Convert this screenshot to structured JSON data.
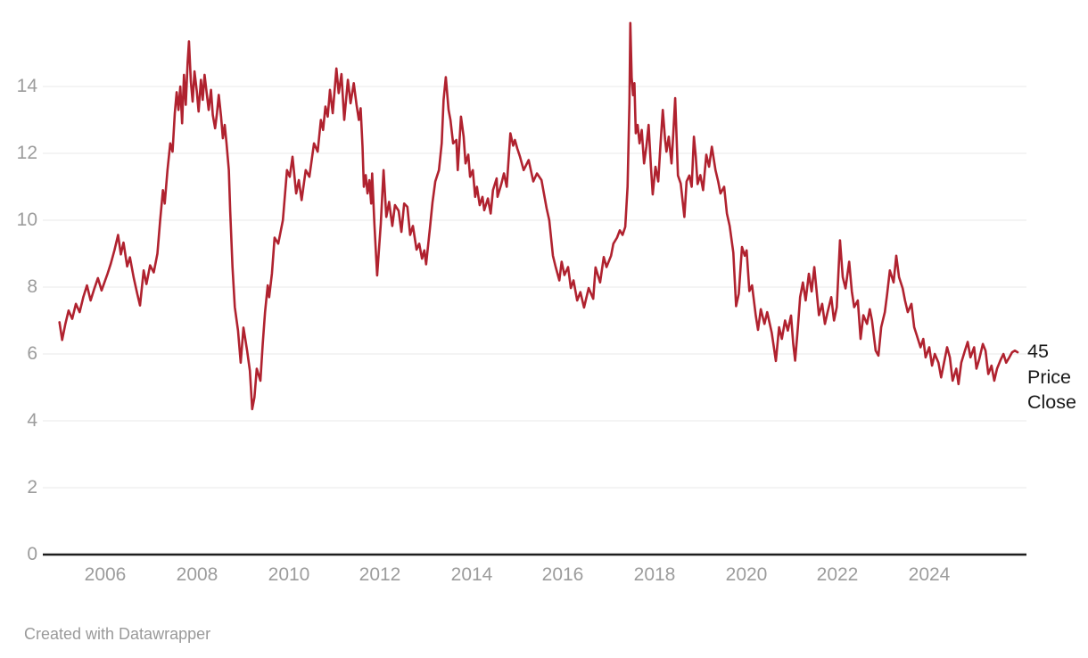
{
  "chart_data": {
    "type": "line",
    "title": "",
    "series_label": "45 Price Close",
    "end_label_lines": [
      "45",
      "Price",
      "Close"
    ],
    "xlabel": "",
    "ylabel": "",
    "legend_position": "end-of-line-label",
    "grid": "horizontal",
    "x_ticks": [
      "2006",
      "2008",
      "2010",
      "2012",
      "2014",
      "2016",
      "2018",
      "2020",
      "2022",
      "2024"
    ],
    "y_ticks": [
      "14",
      "12",
      "10",
      "8",
      "6",
      "4",
      "2",
      "0"
    ],
    "xlim": [
      2004.9,
      2026.1
    ],
    "ylim": [
      0,
      16.6
    ],
    "colors": {
      "line": "#b0222f",
      "grid": "#e8e8e8",
      "axis": "#1d1d1d",
      "tick_label": "#9c9c9c",
      "end_label": "#1a1a1a",
      "attribution": "#9a9a9a"
    },
    "points": [
      [
        2005.0,
        6.95
      ],
      [
        2005.06,
        6.42
      ],
      [
        2005.13,
        6.9
      ],
      [
        2005.2,
        7.3
      ],
      [
        2005.28,
        7.05
      ],
      [
        2005.36,
        7.5
      ],
      [
        2005.44,
        7.25
      ],
      [
        2005.52,
        7.7
      ],
      [
        2005.6,
        8.05
      ],
      [
        2005.68,
        7.6
      ],
      [
        2005.76,
        7.95
      ],
      [
        2005.84,
        8.27
      ],
      [
        2005.92,
        7.9
      ],
      [
        2005.98,
        8.13
      ],
      [
        2006.05,
        8.4
      ],
      [
        2006.12,
        8.7
      ],
      [
        2006.2,
        9.1
      ],
      [
        2006.28,
        9.56
      ],
      [
        2006.34,
        8.98
      ],
      [
        2006.4,
        9.33
      ],
      [
        2006.48,
        8.62
      ],
      [
        2006.54,
        8.89
      ],
      [
        2006.62,
        8.3
      ],
      [
        2006.7,
        7.8
      ],
      [
        2006.76,
        7.45
      ],
      [
        2006.84,
        8.5
      ],
      [
        2006.9,
        8.09
      ],
      [
        2006.98,
        8.65
      ],
      [
        2007.06,
        8.44
      ],
      [
        2007.14,
        9.0
      ],
      [
        2007.2,
        10.0
      ],
      [
        2007.26,
        10.9
      ],
      [
        2007.3,
        10.5
      ],
      [
        2007.36,
        11.5
      ],
      [
        2007.42,
        12.3
      ],
      [
        2007.47,
        12.05
      ],
      [
        2007.52,
        13.2
      ],
      [
        2007.56,
        13.83
      ],
      [
        2007.6,
        13.3
      ],
      [
        2007.64,
        14.0
      ],
      [
        2007.68,
        12.9
      ],
      [
        2007.72,
        14.35
      ],
      [
        2007.76,
        13.45
      ],
      [
        2007.8,
        14.72
      ],
      [
        2007.83,
        15.35
      ],
      [
        2007.87,
        14.15
      ],
      [
        2007.91,
        13.55
      ],
      [
        2007.95,
        14.45
      ],
      [
        2008.0,
        13.85
      ],
      [
        2008.04,
        13.25
      ],
      [
        2008.09,
        14.2
      ],
      [
        2008.13,
        13.6
      ],
      [
        2008.17,
        14.35
      ],
      [
        2008.22,
        13.75
      ],
      [
        2008.26,
        13.3
      ],
      [
        2008.31,
        13.9
      ],
      [
        2008.35,
        13.15
      ],
      [
        2008.4,
        12.75
      ],
      [
        2008.44,
        13.2
      ],
      [
        2008.48,
        13.75
      ],
      [
        2008.53,
        13.1
      ],
      [
        2008.57,
        12.45
      ],
      [
        2008.61,
        12.85
      ],
      [
        2008.65,
        12.3
      ],
      [
        2008.7,
        11.5
      ],
      [
        2008.73,
        10.3
      ],
      [
        2008.78,
        8.6
      ],
      [
        2008.83,
        7.4
      ],
      [
        2008.9,
        6.7
      ],
      [
        2008.96,
        5.74
      ],
      [
        2009.02,
        6.79
      ],
      [
        2009.1,
        6.1
      ],
      [
        2009.16,
        5.5
      ],
      [
        2009.21,
        4.35
      ],
      [
        2009.26,
        4.7
      ],
      [
        2009.31,
        5.56
      ],
      [
        2009.39,
        5.2
      ],
      [
        2009.44,
        6.3
      ],
      [
        2009.49,
        7.25
      ],
      [
        2009.55,
        8.05
      ],
      [
        2009.58,
        7.7
      ],
      [
        2009.64,
        8.4
      ],
      [
        2009.7,
        9.48
      ],
      [
        2009.78,
        9.3
      ],
      [
        2009.88,
        10.0
      ],
      [
        2009.97,
        11.5
      ],
      [
        2010.03,
        11.3
      ],
      [
        2010.09,
        11.9
      ],
      [
        2010.17,
        10.8
      ],
      [
        2010.23,
        11.2
      ],
      [
        2010.29,
        10.6
      ],
      [
        2010.38,
        11.5
      ],
      [
        2010.46,
        11.3
      ],
      [
        2010.56,
        12.3
      ],
      [
        2010.64,
        12.05
      ],
      [
        2010.71,
        13.0
      ],
      [
        2010.76,
        12.7
      ],
      [
        2010.81,
        13.4
      ],
      [
        2010.86,
        13.1
      ],
      [
        2010.91,
        13.9
      ],
      [
        2010.97,
        13.2
      ],
      [
        2011.05,
        14.54
      ],
      [
        2011.1,
        13.8
      ],
      [
        2011.16,
        14.37
      ],
      [
        2011.22,
        13.0
      ],
      [
        2011.3,
        14.2
      ],
      [
        2011.36,
        13.5
      ],
      [
        2011.43,
        14.1
      ],
      [
        2011.49,
        13.45
      ],
      [
        2011.54,
        13.0
      ],
      [
        2011.58,
        13.35
      ],
      [
        2011.62,
        12.2
      ],
      [
        2011.65,
        11.0
      ],
      [
        2011.69,
        11.35
      ],
      [
        2011.73,
        10.8
      ],
      [
        2011.77,
        11.2
      ],
      [
        2011.81,
        10.5
      ],
      [
        2011.83,
        11.4
      ],
      [
        2011.88,
        9.9
      ],
      [
        2011.94,
        8.35
      ],
      [
        2012.02,
        9.9
      ],
      [
        2012.08,
        11.5
      ],
      [
        2012.14,
        10.1
      ],
      [
        2012.2,
        10.55
      ],
      [
        2012.27,
        9.83
      ],
      [
        2012.33,
        10.45
      ],
      [
        2012.41,
        10.28
      ],
      [
        2012.47,
        9.65
      ],
      [
        2012.53,
        10.5
      ],
      [
        2012.6,
        10.4
      ],
      [
        2012.66,
        9.56
      ],
      [
        2012.72,
        9.83
      ],
      [
        2012.8,
        9.12
      ],
      [
        2012.86,
        9.3
      ],
      [
        2012.92,
        8.85
      ],
      [
        2012.97,
        9.1
      ],
      [
        2013.01,
        8.68
      ],
      [
        2013.09,
        9.74
      ],
      [
        2013.15,
        10.54
      ],
      [
        2013.21,
        11.16
      ],
      [
        2013.29,
        11.5
      ],
      [
        2013.35,
        12.3
      ],
      [
        2013.39,
        13.6
      ],
      [
        2013.44,
        14.28
      ],
      [
        2013.5,
        13.3
      ],
      [
        2013.54,
        13.0
      ],
      [
        2013.6,
        12.3
      ],
      [
        2013.67,
        12.4
      ],
      [
        2013.7,
        11.5
      ],
      [
        2013.77,
        13.1
      ],
      [
        2013.83,
        12.5
      ],
      [
        2013.87,
        11.7
      ],
      [
        2013.93,
        11.96
      ],
      [
        2013.97,
        11.3
      ],
      [
        2014.03,
        11.5
      ],
      [
        2014.08,
        10.7
      ],
      [
        2014.12,
        11.0
      ],
      [
        2014.18,
        10.45
      ],
      [
        2014.24,
        10.7
      ],
      [
        2014.28,
        10.3
      ],
      [
        2014.36,
        10.65
      ],
      [
        2014.42,
        10.2
      ],
      [
        2014.47,
        10.9
      ],
      [
        2014.55,
        11.25
      ],
      [
        2014.57,
        10.7
      ],
      [
        2014.65,
        11.07
      ],
      [
        2014.71,
        11.4
      ],
      [
        2014.77,
        11.0
      ],
      [
        2014.85,
        12.6
      ],
      [
        2014.91,
        12.23
      ],
      [
        2014.95,
        12.4
      ],
      [
        2015.0,
        12.15
      ],
      [
        2015.06,
        11.9
      ],
      [
        2015.14,
        11.5
      ],
      [
        2015.25,
        11.8
      ],
      [
        2015.35,
        11.16
      ],
      [
        2015.43,
        11.4
      ],
      [
        2015.53,
        11.2
      ],
      [
        2015.64,
        10.36
      ],
      [
        2015.7,
        10.0
      ],
      [
        2015.78,
        8.94
      ],
      [
        2015.84,
        8.6
      ],
      [
        2015.92,
        8.2
      ],
      [
        2015.97,
        8.76
      ],
      [
        2016.03,
        8.36
      ],
      [
        2016.11,
        8.6
      ],
      [
        2016.17,
        7.97
      ],
      [
        2016.23,
        8.2
      ],
      [
        2016.31,
        7.6
      ],
      [
        2016.38,
        7.85
      ],
      [
        2016.46,
        7.39
      ],
      [
        2016.56,
        7.97
      ],
      [
        2016.66,
        7.65
      ],
      [
        2016.71,
        8.59
      ],
      [
        2016.81,
        8.14
      ],
      [
        2016.89,
        8.9
      ],
      [
        2016.95,
        8.6
      ],
      [
        2017.05,
        8.94
      ],
      [
        2017.1,
        9.3
      ],
      [
        2017.18,
        9.48
      ],
      [
        2017.24,
        9.7
      ],
      [
        2017.3,
        9.56
      ],
      [
        2017.36,
        9.8
      ],
      [
        2017.41,
        11.0
      ],
      [
        2017.45,
        13.5
      ],
      [
        2017.47,
        15.9
      ],
      [
        2017.5,
        14.27
      ],
      [
        2017.53,
        13.74
      ],
      [
        2017.56,
        14.1
      ],
      [
        2017.59,
        12.6
      ],
      [
        2017.63,
        12.85
      ],
      [
        2017.67,
        12.3
      ],
      [
        2017.72,
        12.7
      ],
      [
        2017.77,
        11.7
      ],
      [
        2017.82,
        12.2
      ],
      [
        2017.87,
        12.85
      ],
      [
        2017.92,
        11.6
      ],
      [
        2017.96,
        10.77
      ],
      [
        2018.02,
        11.6
      ],
      [
        2018.08,
        11.16
      ],
      [
        2018.13,
        12.3
      ],
      [
        2018.18,
        13.3
      ],
      [
        2018.23,
        12.4
      ],
      [
        2018.26,
        12.05
      ],
      [
        2018.31,
        12.5
      ],
      [
        2018.37,
        11.7
      ],
      [
        2018.41,
        12.6
      ],
      [
        2018.45,
        13.65
      ],
      [
        2018.51,
        11.34
      ],
      [
        2018.57,
        11.1
      ],
      [
        2018.65,
        10.1
      ],
      [
        2018.7,
        11.16
      ],
      [
        2018.76,
        11.34
      ],
      [
        2018.81,
        11.0
      ],
      [
        2018.86,
        12.5
      ],
      [
        2018.9,
        11.9
      ],
      [
        2018.94,
        11.08
      ],
      [
        2019.0,
        11.35
      ],
      [
        2019.06,
        10.9
      ],
      [
        2019.13,
        11.96
      ],
      [
        2019.19,
        11.6
      ],
      [
        2019.25,
        12.2
      ],
      [
        2019.33,
        11.5
      ],
      [
        2019.39,
        11.16
      ],
      [
        2019.44,
        10.8
      ],
      [
        2019.52,
        11.0
      ],
      [
        2019.58,
        10.2
      ],
      [
        2019.64,
        9.83
      ],
      [
        2019.72,
        9.03
      ],
      [
        2019.78,
        7.43
      ],
      [
        2019.84,
        7.8
      ],
      [
        2019.91,
        9.2
      ],
      [
        2019.97,
        8.94
      ],
      [
        2020.01,
        9.1
      ],
      [
        2020.07,
        7.88
      ],
      [
        2020.13,
        8.05
      ],
      [
        2020.21,
        7.16
      ],
      [
        2020.26,
        6.72
      ],
      [
        2020.32,
        7.34
      ],
      [
        2020.4,
        6.9
      ],
      [
        2020.46,
        7.25
      ],
      [
        2020.56,
        6.63
      ],
      [
        2020.65,
        5.79
      ],
      [
        2020.72,
        6.8
      ],
      [
        2020.78,
        6.45
      ],
      [
        2020.85,
        7.0
      ],
      [
        2020.91,
        6.7
      ],
      [
        2020.98,
        7.15
      ],
      [
        2021.03,
        6.3
      ],
      [
        2021.07,
        5.8
      ],
      [
        2021.13,
        6.8
      ],
      [
        2021.18,
        7.7
      ],
      [
        2021.24,
        8.14
      ],
      [
        2021.3,
        7.6
      ],
      [
        2021.37,
        8.4
      ],
      [
        2021.43,
        7.87
      ],
      [
        2021.49,
        8.6
      ],
      [
        2021.59,
        7.16
      ],
      [
        2021.66,
        7.5
      ],
      [
        2021.72,
        6.9
      ],
      [
        2021.78,
        7.25
      ],
      [
        2021.86,
        7.7
      ],
      [
        2021.92,
        7.0
      ],
      [
        2021.98,
        7.4
      ],
      [
        2022.05,
        9.4
      ],
      [
        2022.11,
        8.3
      ],
      [
        2022.17,
        7.96
      ],
      [
        2022.25,
        8.76
      ],
      [
        2022.31,
        7.87
      ],
      [
        2022.36,
        7.4
      ],
      [
        2022.44,
        7.6
      ],
      [
        2022.5,
        6.45
      ],
      [
        2022.56,
        7.16
      ],
      [
        2022.64,
        6.9
      ],
      [
        2022.7,
        7.34
      ],
      [
        2022.75,
        7.0
      ],
      [
        2022.83,
        6.1
      ],
      [
        2022.89,
        5.95
      ],
      [
        2022.95,
        6.8
      ],
      [
        2023.03,
        7.25
      ],
      [
        2023.08,
        7.8
      ],
      [
        2023.14,
        8.5
      ],
      [
        2023.22,
        8.14
      ],
      [
        2023.28,
        8.94
      ],
      [
        2023.34,
        8.3
      ],
      [
        2023.42,
        7.96
      ],
      [
        2023.47,
        7.6
      ],
      [
        2023.53,
        7.25
      ],
      [
        2023.61,
        7.5
      ],
      [
        2023.67,
        6.8
      ],
      [
        2023.73,
        6.55
      ],
      [
        2023.81,
        6.2
      ],
      [
        2023.87,
        6.45
      ],
      [
        2023.92,
        5.9
      ],
      [
        2024.0,
        6.2
      ],
      [
        2024.06,
        5.65
      ],
      [
        2024.12,
        6.0
      ],
      [
        2024.2,
        5.74
      ],
      [
        2024.26,
        5.3
      ],
      [
        2024.31,
        5.65
      ],
      [
        2024.39,
        6.2
      ],
      [
        2024.45,
        5.9
      ],
      [
        2024.51,
        5.2
      ],
      [
        2024.59,
        5.56
      ],
      [
        2024.64,
        5.1
      ],
      [
        2024.7,
        5.74
      ],
      [
        2024.78,
        6.1
      ],
      [
        2024.84,
        6.36
      ],
      [
        2024.9,
        5.9
      ],
      [
        2024.98,
        6.2
      ],
      [
        2025.03,
        5.56
      ],
      [
        2025.09,
        5.83
      ],
      [
        2025.17,
        6.3
      ],
      [
        2025.23,
        6.1
      ],
      [
        2025.29,
        5.4
      ],
      [
        2025.36,
        5.65
      ],
      [
        2025.42,
        5.2
      ],
      [
        2025.48,
        5.56
      ],
      [
        2025.56,
        5.83
      ],
      [
        2025.62,
        6.0
      ],
      [
        2025.68,
        5.74
      ],
      [
        2025.75,
        5.9
      ],
      [
        2025.81,
        6.05
      ],
      [
        2025.87,
        6.1
      ],
      [
        2025.93,
        6.05
      ]
    ]
  },
  "attribution": {
    "text": "Created with Datawrapper"
  }
}
